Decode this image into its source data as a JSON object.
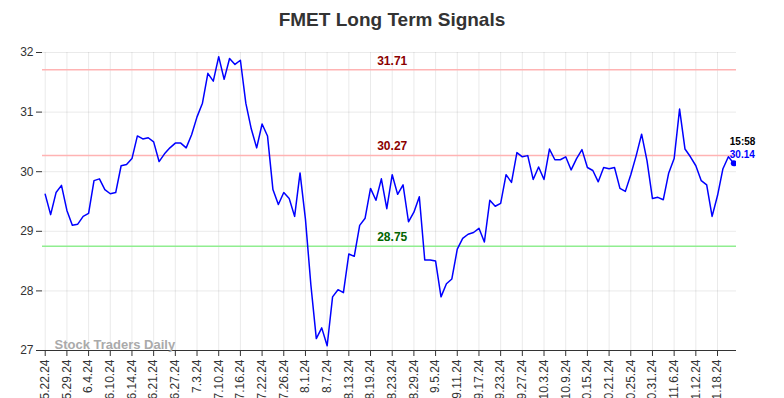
{
  "chart_data": {
    "type": "line",
    "title": "FMET Long Term Signals",
    "categories": [
      "5.22.24",
      null,
      null,
      null,
      "5.29.24",
      null,
      null,
      null,
      "6.4.24",
      null,
      null,
      null,
      "6.10.24",
      null,
      null,
      null,
      "6.14.24",
      null,
      null,
      null,
      "6.21.24",
      null,
      null,
      null,
      "6.27.24",
      null,
      null,
      null,
      "7.3.24",
      null,
      null,
      null,
      "7.10.24",
      null,
      null,
      null,
      "7.16.24",
      null,
      null,
      null,
      "7.22.24",
      null,
      null,
      null,
      "7.26.24",
      null,
      null,
      null,
      "8.1.24",
      null,
      null,
      null,
      "8.7.24",
      null,
      null,
      null,
      "8.13.24",
      null,
      null,
      null,
      "8.19.24",
      null,
      null,
      null,
      "8.23.24",
      null,
      null,
      null,
      "8.29.24",
      null,
      null,
      null,
      "9.5.24",
      null,
      null,
      null,
      "9.11.24",
      null,
      null,
      null,
      "9.17.24",
      null,
      null,
      null,
      "9.23.24",
      null,
      null,
      null,
      "9.27.24",
      null,
      null,
      null,
      "10.3.24",
      null,
      null,
      null,
      "10.9.24",
      null,
      null,
      null,
      "10.15.24",
      null,
      null,
      null,
      "10.21.24",
      null,
      null,
      null,
      "10.25.24",
      null,
      null,
      null,
      "10.31.24",
      null,
      null,
      null,
      "11.6.24",
      null,
      null,
      null,
      "11.12.24",
      null,
      null,
      null,
      "11.18.24",
      null,
      null,
      null
    ],
    "values": [
      29.62,
      29.28,
      29.65,
      29.77,
      29.35,
      29.1,
      29.12,
      29.25,
      29.3,
      29.85,
      29.88,
      29.7,
      29.63,
      29.65,
      30.1,
      30.12,
      30.22,
      30.6,
      30.55,
      30.57,
      30.5,
      30.17,
      30.3,
      30.4,
      30.48,
      30.48,
      30.4,
      30.62,
      30.92,
      31.15,
      31.65,
      31.52,
      31.93,
      31.55,
      31.9,
      31.8,
      31.87,
      31.15,
      30.72,
      30.4,
      30.8,
      30.6,
      29.7,
      29.45,
      29.65,
      29.55,
      29.25,
      29.98,
      29.2,
      28.1,
      27.2,
      27.38,
      27.08,
      27.9,
      28.02,
      27.97,
      28.62,
      28.58,
      29.1,
      29.22,
      29.72,
      29.52,
      29.88,
      29.38,
      29.95,
      29.62,
      29.78,
      29.16,
      29.32,
      29.58,
      28.52,
      28.52,
      28.5,
      27.9,
      28.12,
      28.2,
      28.7,
      28.88,
      28.95,
      28.98,
      29.05,
      28.82,
      29.52,
      29.42,
      29.47,
      29.95,
      29.82,
      30.32,
      30.25,
      30.27,
      29.87,
      30.08,
      29.87,
      30.38,
      30.2,
      30.2,
      30.25,
      30.03,
      30.22,
      30.37,
      30.07,
      30.02,
      29.83,
      30.07,
      30.05,
      30.07,
      29.72,
      29.67,
      29.95,
      30.27,
      30.63,
      30.18,
      29.55,
      29.57,
      29.53,
      29.98,
      30.22,
      31.05,
      30.38,
      30.25,
      30.1,
      29.85,
      29.78,
      29.25,
      29.6,
      30.05,
      30.25,
      30.14
    ],
    "color": "#0000ff",
    "ylim": [
      27,
      32
    ],
    "yticks": [
      27,
      28,
      29,
      30,
      31,
      32
    ],
    "grid": true,
    "signals": [
      {
        "value": 31.71,
        "color": "#ffb3b3",
        "label_color": "#8b0000"
      },
      {
        "value": 30.27,
        "color": "#ffb3b3",
        "label_color": "#8b0000"
      },
      {
        "value": 28.75,
        "color": "#90ee90",
        "label_color": "#006400"
      }
    ],
    "last_time": "15:58",
    "watermark": "Stock Traders Daily"
  }
}
